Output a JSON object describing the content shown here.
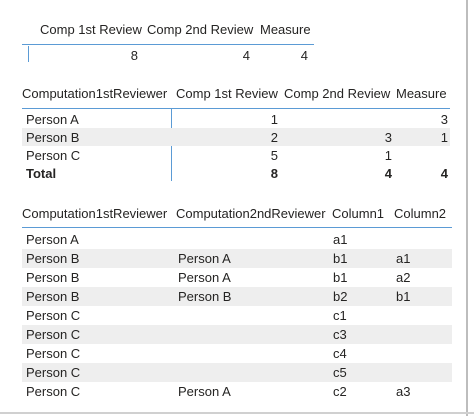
{
  "table1": {
    "headers": [
      "Comp 1st Review",
      "Comp 2nd Review",
      "Measure"
    ],
    "row": [
      "8",
      "4",
      "4"
    ]
  },
  "table2": {
    "headers": [
      "Computation1stReviewer",
      "Comp 1st Review",
      "Comp 2nd Review",
      "Measure"
    ],
    "rows": [
      [
        "Person A",
        "1",
        "",
        "3"
      ],
      [
        "Person B",
        "2",
        "3",
        "1"
      ],
      [
        "Person C",
        "5",
        "1",
        ""
      ]
    ],
    "total": [
      "Total",
      "8",
      "4",
      "4"
    ]
  },
  "table3": {
    "headers": [
      "Computation1stReviewer",
      "Computation2ndReviewer",
      "Column1",
      "Column2"
    ],
    "rows": [
      [
        "Person A",
        "",
        "a1",
        ""
      ],
      [
        "Person B",
        "Person A",
        "b1",
        "a1"
      ],
      [
        "Person B",
        "Person A",
        "b1",
        "a2"
      ],
      [
        "Person B",
        "Person B",
        "b2",
        "b1"
      ],
      [
        "Person C",
        "",
        "c1",
        ""
      ],
      [
        "Person C",
        "",
        "c3",
        ""
      ],
      [
        "Person C",
        "",
        "c4",
        ""
      ],
      [
        "Person C",
        "",
        "c5",
        ""
      ],
      [
        "Person C",
        "Person A",
        "c2",
        "a3"
      ]
    ]
  },
  "colors": {
    "accent": "#5b9bd5",
    "row_alt": "#eeeeee",
    "text": "#252423"
  }
}
